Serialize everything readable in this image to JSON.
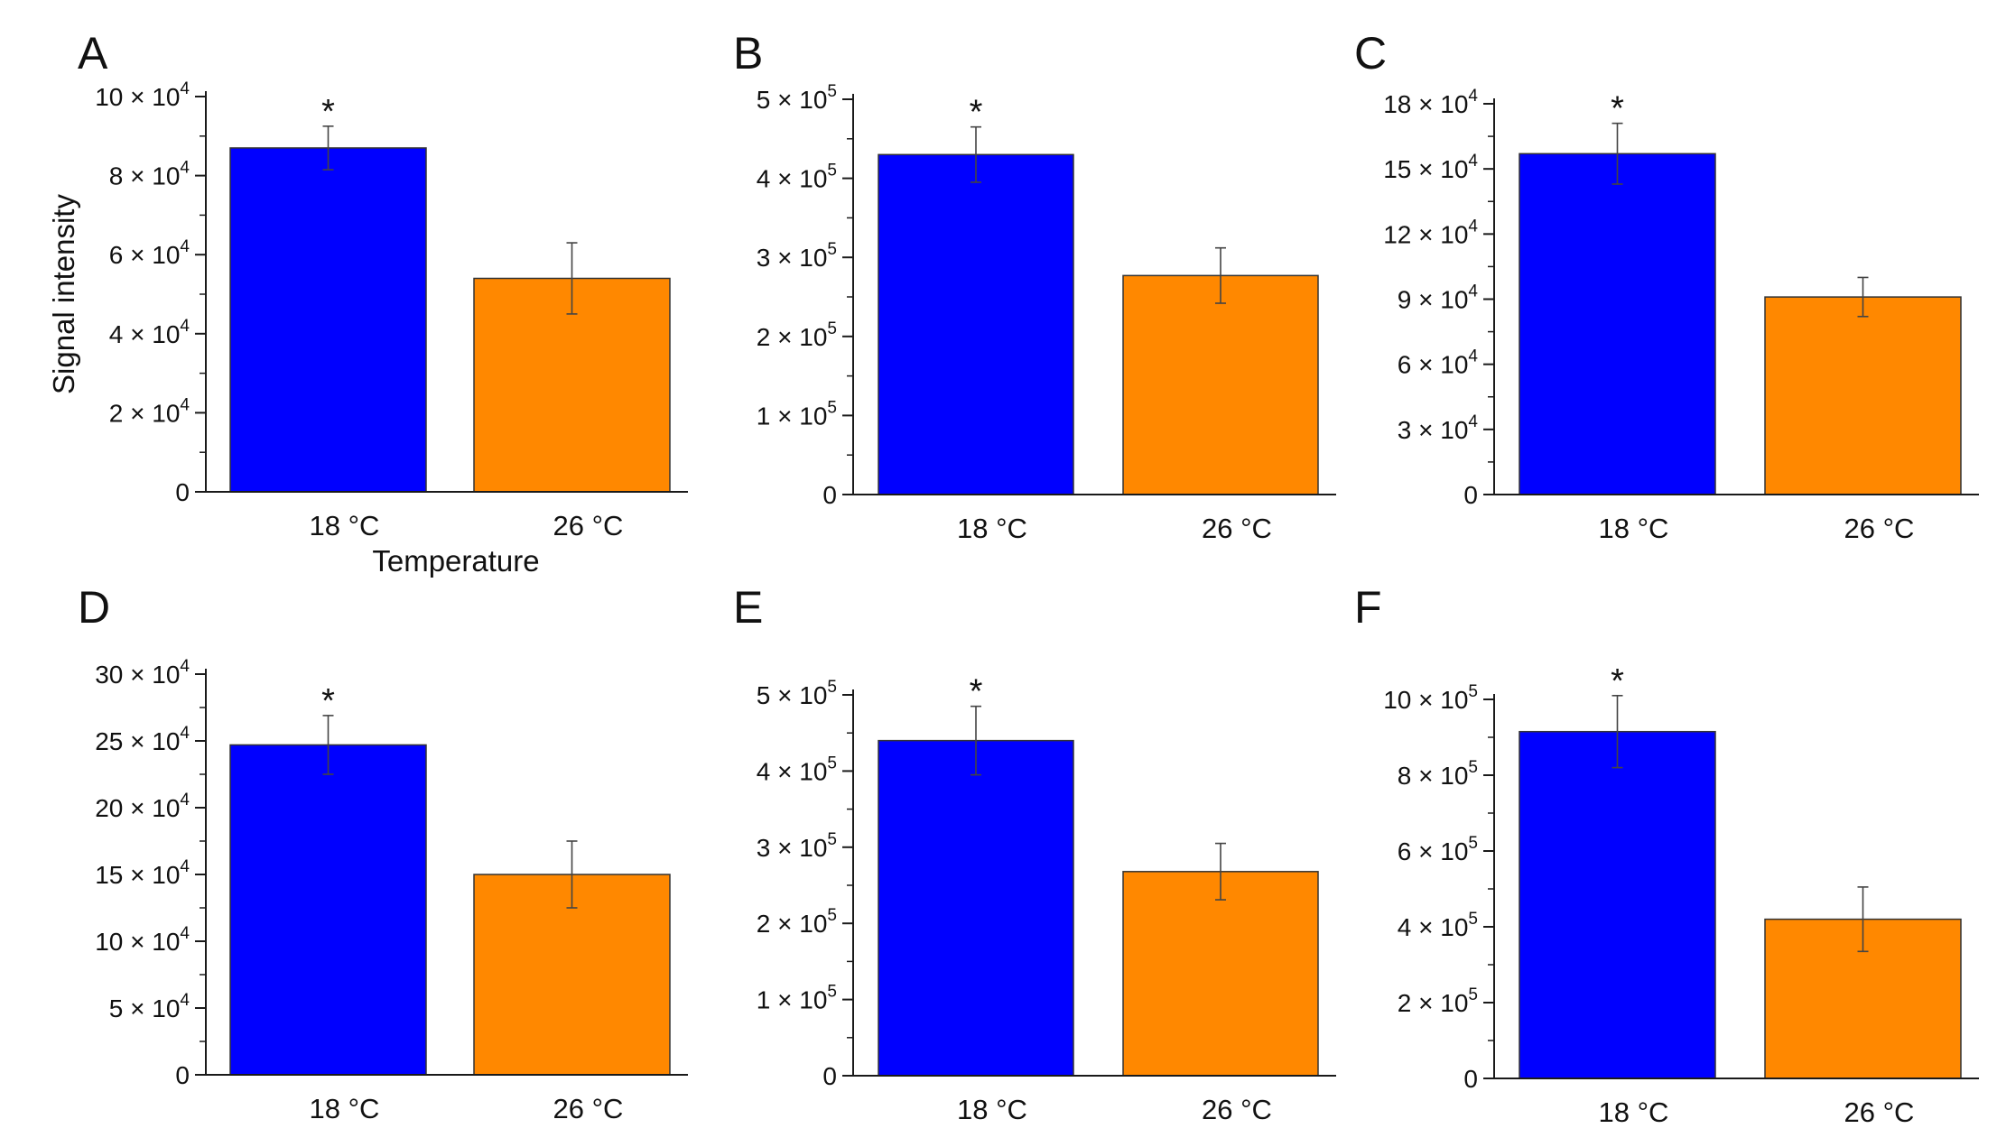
{
  "chart_data": [
    {
      "panel": "A",
      "type": "bar",
      "categories": [
        "18 °C",
        "26 °C"
      ],
      "values": [
        87000,
        54000
      ],
      "errors": [
        5500,
        9000
      ],
      "significance": [
        "*",
        ""
      ],
      "colors": [
        "#0000ff",
        "#ff8800"
      ],
      "xlabel": "Temperature",
      "ylabel": "Signal intensity",
      "ylim": [
        0,
        100000
      ],
      "yticks": [
        {
          "value": 0,
          "mantissa": "0",
          "exp": ""
        },
        {
          "value": 20000,
          "mantissa": "2 × 10",
          "exp": "4"
        },
        {
          "value": 40000,
          "mantissa": "4 × 10",
          "exp": "4"
        },
        {
          "value": 60000,
          "mantissa": "6 × 10",
          "exp": "4"
        },
        {
          "value": 80000,
          "mantissa": "8 × 10",
          "exp": "4"
        },
        {
          "value": 100000,
          "mantissa": "10 × 10",
          "exp": "4"
        }
      ]
    },
    {
      "panel": "B",
      "type": "bar",
      "categories": [
        "18 °C",
        "26 °C"
      ],
      "values": [
        430000,
        277000
      ],
      "errors": [
        35000,
        35000
      ],
      "significance": [
        "*",
        ""
      ],
      "colors": [
        "#0000ff",
        "#ff8800"
      ],
      "xlabel": "",
      "ylabel": "",
      "ylim": [
        0,
        500000
      ],
      "yticks": [
        {
          "value": 0,
          "mantissa": "0",
          "exp": ""
        },
        {
          "value": 100000,
          "mantissa": "1 × 10",
          "exp": "5"
        },
        {
          "value": 200000,
          "mantissa": "2 × 10",
          "exp": "5"
        },
        {
          "value": 300000,
          "mantissa": "3 × 10",
          "exp": "5"
        },
        {
          "value": 400000,
          "mantissa": "4 × 10",
          "exp": "5"
        },
        {
          "value": 500000,
          "mantissa": "5 × 10",
          "exp": "5"
        }
      ]
    },
    {
      "panel": "C",
      "type": "bar",
      "categories": [
        "18 °C",
        "26 °C"
      ],
      "values": [
        157000,
        91000
      ],
      "errors": [
        14000,
        9000
      ],
      "significance": [
        "*",
        ""
      ],
      "colors": [
        "#0000ff",
        "#ff8800"
      ],
      "xlabel": "",
      "ylabel": "",
      "ylim": [
        0,
        180000
      ],
      "yticks": [
        {
          "value": 0,
          "mantissa": "0",
          "exp": ""
        },
        {
          "value": 30000,
          "mantissa": "3 × 10",
          "exp": "4"
        },
        {
          "value": 60000,
          "mantissa": "6 × 10",
          "exp": "4"
        },
        {
          "value": 90000,
          "mantissa": "9 × 10",
          "exp": "4"
        },
        {
          "value": 120000,
          "mantissa": "12 × 10",
          "exp": "4"
        },
        {
          "value": 150000,
          "mantissa": "15 × 10",
          "exp": "4"
        },
        {
          "value": 180000,
          "mantissa": "18 × 10",
          "exp": "4"
        }
      ]
    },
    {
      "panel": "D",
      "type": "bar",
      "categories": [
        "18 °C",
        "26 °C"
      ],
      "values": [
        247000,
        150000
      ],
      "errors": [
        22000,
        25000
      ],
      "significance": [
        "*",
        ""
      ],
      "colors": [
        "#0000ff",
        "#ff8800"
      ],
      "xlabel": "",
      "ylabel": "",
      "ylim": [
        0,
        300000
      ],
      "yticks": [
        {
          "value": 0,
          "mantissa": "0",
          "exp": ""
        },
        {
          "value": 50000,
          "mantissa": "5 × 10",
          "exp": "4"
        },
        {
          "value": 100000,
          "mantissa": "10 × 10",
          "exp": "4"
        },
        {
          "value": 150000,
          "mantissa": "15 × 10",
          "exp": "4"
        },
        {
          "value": 200000,
          "mantissa": "20 × 10",
          "exp": "4"
        },
        {
          "value": 250000,
          "mantissa": "25 × 10",
          "exp": "4"
        },
        {
          "value": 300000,
          "mantissa": "30 × 10",
          "exp": "4"
        }
      ]
    },
    {
      "panel": "E",
      "type": "bar",
      "categories": [
        "18 °C",
        "26 °C"
      ],
      "values": [
        440000,
        268000
      ],
      "errors": [
        45000,
        37000
      ],
      "significance": [
        "*",
        ""
      ],
      "colors": [
        "#0000ff",
        "#ff8800"
      ],
      "xlabel": "",
      "ylabel": "",
      "ylim": [
        0,
        500000
      ],
      "yticks": [
        {
          "value": 0,
          "mantissa": "0",
          "exp": ""
        },
        {
          "value": 100000,
          "mantissa": "1 × 10",
          "exp": "5"
        },
        {
          "value": 200000,
          "mantissa": "2 × 10",
          "exp": "5"
        },
        {
          "value": 300000,
          "mantissa": "3 × 10",
          "exp": "5"
        },
        {
          "value": 400000,
          "mantissa": "4 × 10",
          "exp": "5"
        },
        {
          "value": 500000,
          "mantissa": "5 × 10",
          "exp": "5"
        }
      ]
    },
    {
      "panel": "F",
      "type": "bar",
      "categories": [
        "18 °C",
        "26 °C"
      ],
      "values": [
        915000,
        420000
      ],
      "errors": [
        95000,
        85000
      ],
      "significance": [
        "*",
        ""
      ],
      "colors": [
        "#0000ff",
        "#ff8800"
      ],
      "xlabel": "",
      "ylabel": "",
      "ylim": [
        0,
        1000000
      ],
      "yticks": [
        {
          "value": 0,
          "mantissa": "0",
          "exp": ""
        },
        {
          "value": 200000,
          "mantissa": "2 × 10",
          "exp": "5"
        },
        {
          "value": 400000,
          "mantissa": "4 × 10",
          "exp": "5"
        },
        {
          "value": 600000,
          "mantissa": "6 × 10",
          "exp": "5"
        },
        {
          "value": 800000,
          "mantissa": "8 × 10",
          "exp": "5"
        },
        {
          "value": 1000000,
          "mantissa": "10 × 10",
          "exp": "5"
        }
      ]
    }
  ]
}
